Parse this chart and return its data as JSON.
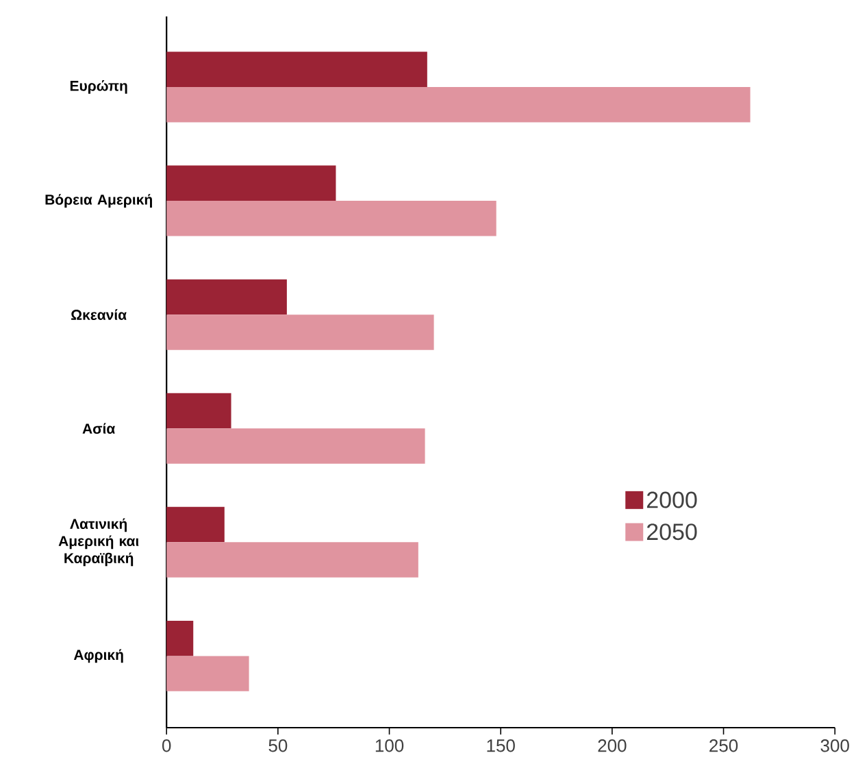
{
  "chart_data": {
    "type": "bar",
    "orientation": "horizontal",
    "categories": [
      "Ευρώπη",
      "Βόρεια Αμερική",
      "Ωκεανία",
      "Ασία",
      "Λατινική Αμερική και Καραϊβική",
      "Αφρική"
    ],
    "series": [
      {
        "name": "2000",
        "color": "#9b2335",
        "values": [
          117,
          76,
          54,
          29,
          26,
          12
        ]
      },
      {
        "name": "2050",
        "color": "#e0949f",
        "values": [
          262,
          148,
          120,
          116,
          113,
          37
        ]
      }
    ],
    "xlim": [
      0,
      300
    ],
    "xticks": [
      0,
      50,
      100,
      150,
      200,
      250,
      300
    ],
    "grid": false,
    "legend": "right"
  }
}
